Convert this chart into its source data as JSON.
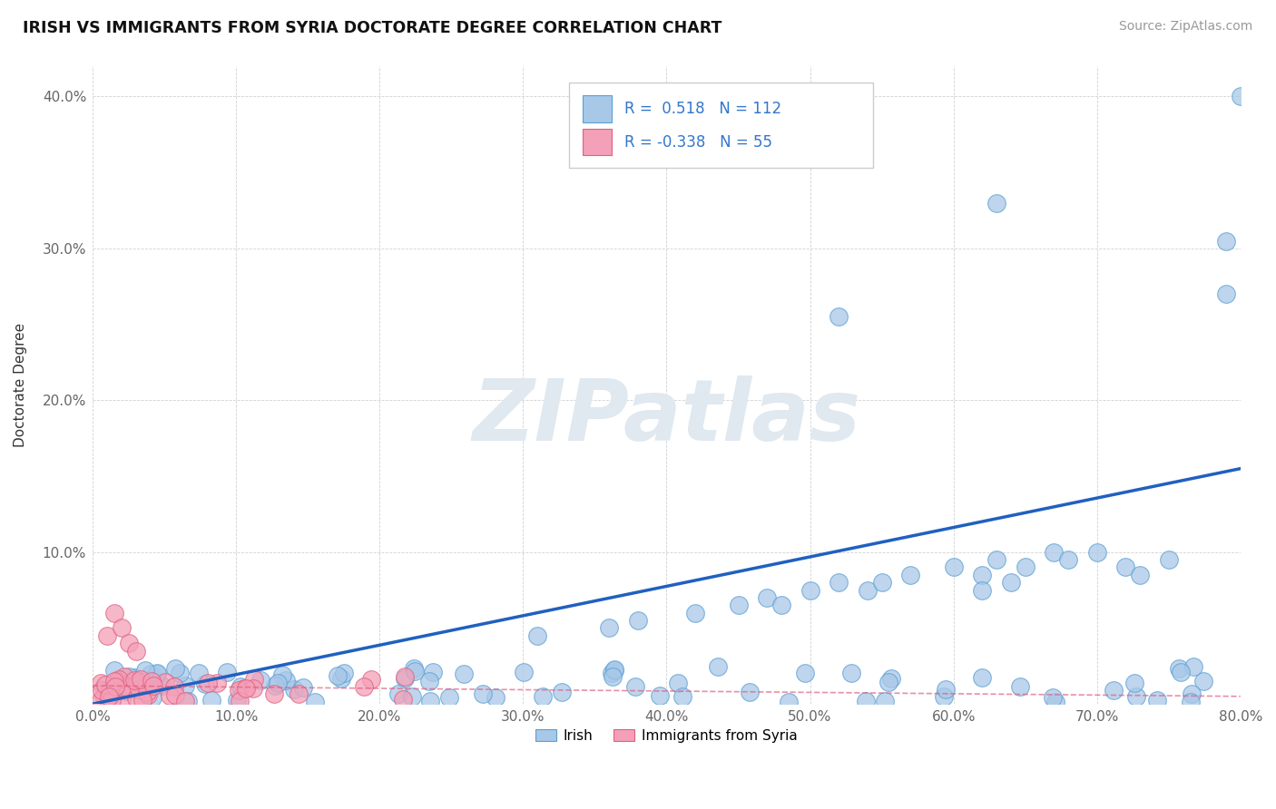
{
  "title": "IRISH VS IMMIGRANTS FROM SYRIA DOCTORATE DEGREE CORRELATION CHART",
  "source_text": "Source: ZipAtlas.com",
  "ylabel": "Doctorate Degree",
  "xlim": [
    0.0,
    0.8
  ],
  "ylim": [
    0.0,
    0.42
  ],
  "xtick_labels": [
    "0.0%",
    "10.0%",
    "20.0%",
    "30.0%",
    "40.0%",
    "50.0%",
    "60.0%",
    "70.0%",
    "80.0%"
  ],
  "ytick_labels": [
    "",
    "10.0%",
    "20.0%",
    "30.0%",
    "40.0%"
  ],
  "irish_color": "#a8c8e8",
  "irish_edge_color": "#5a9fd4",
  "syria_color": "#f4a0b8",
  "syria_edge_color": "#e06080",
  "irish_line_color": "#2060c0",
  "watermark": "ZIPatlas",
  "legend_r_irish": "0.518",
  "legend_n_irish": "112",
  "legend_r_syria": "-0.338",
  "legend_n_syria": "55"
}
